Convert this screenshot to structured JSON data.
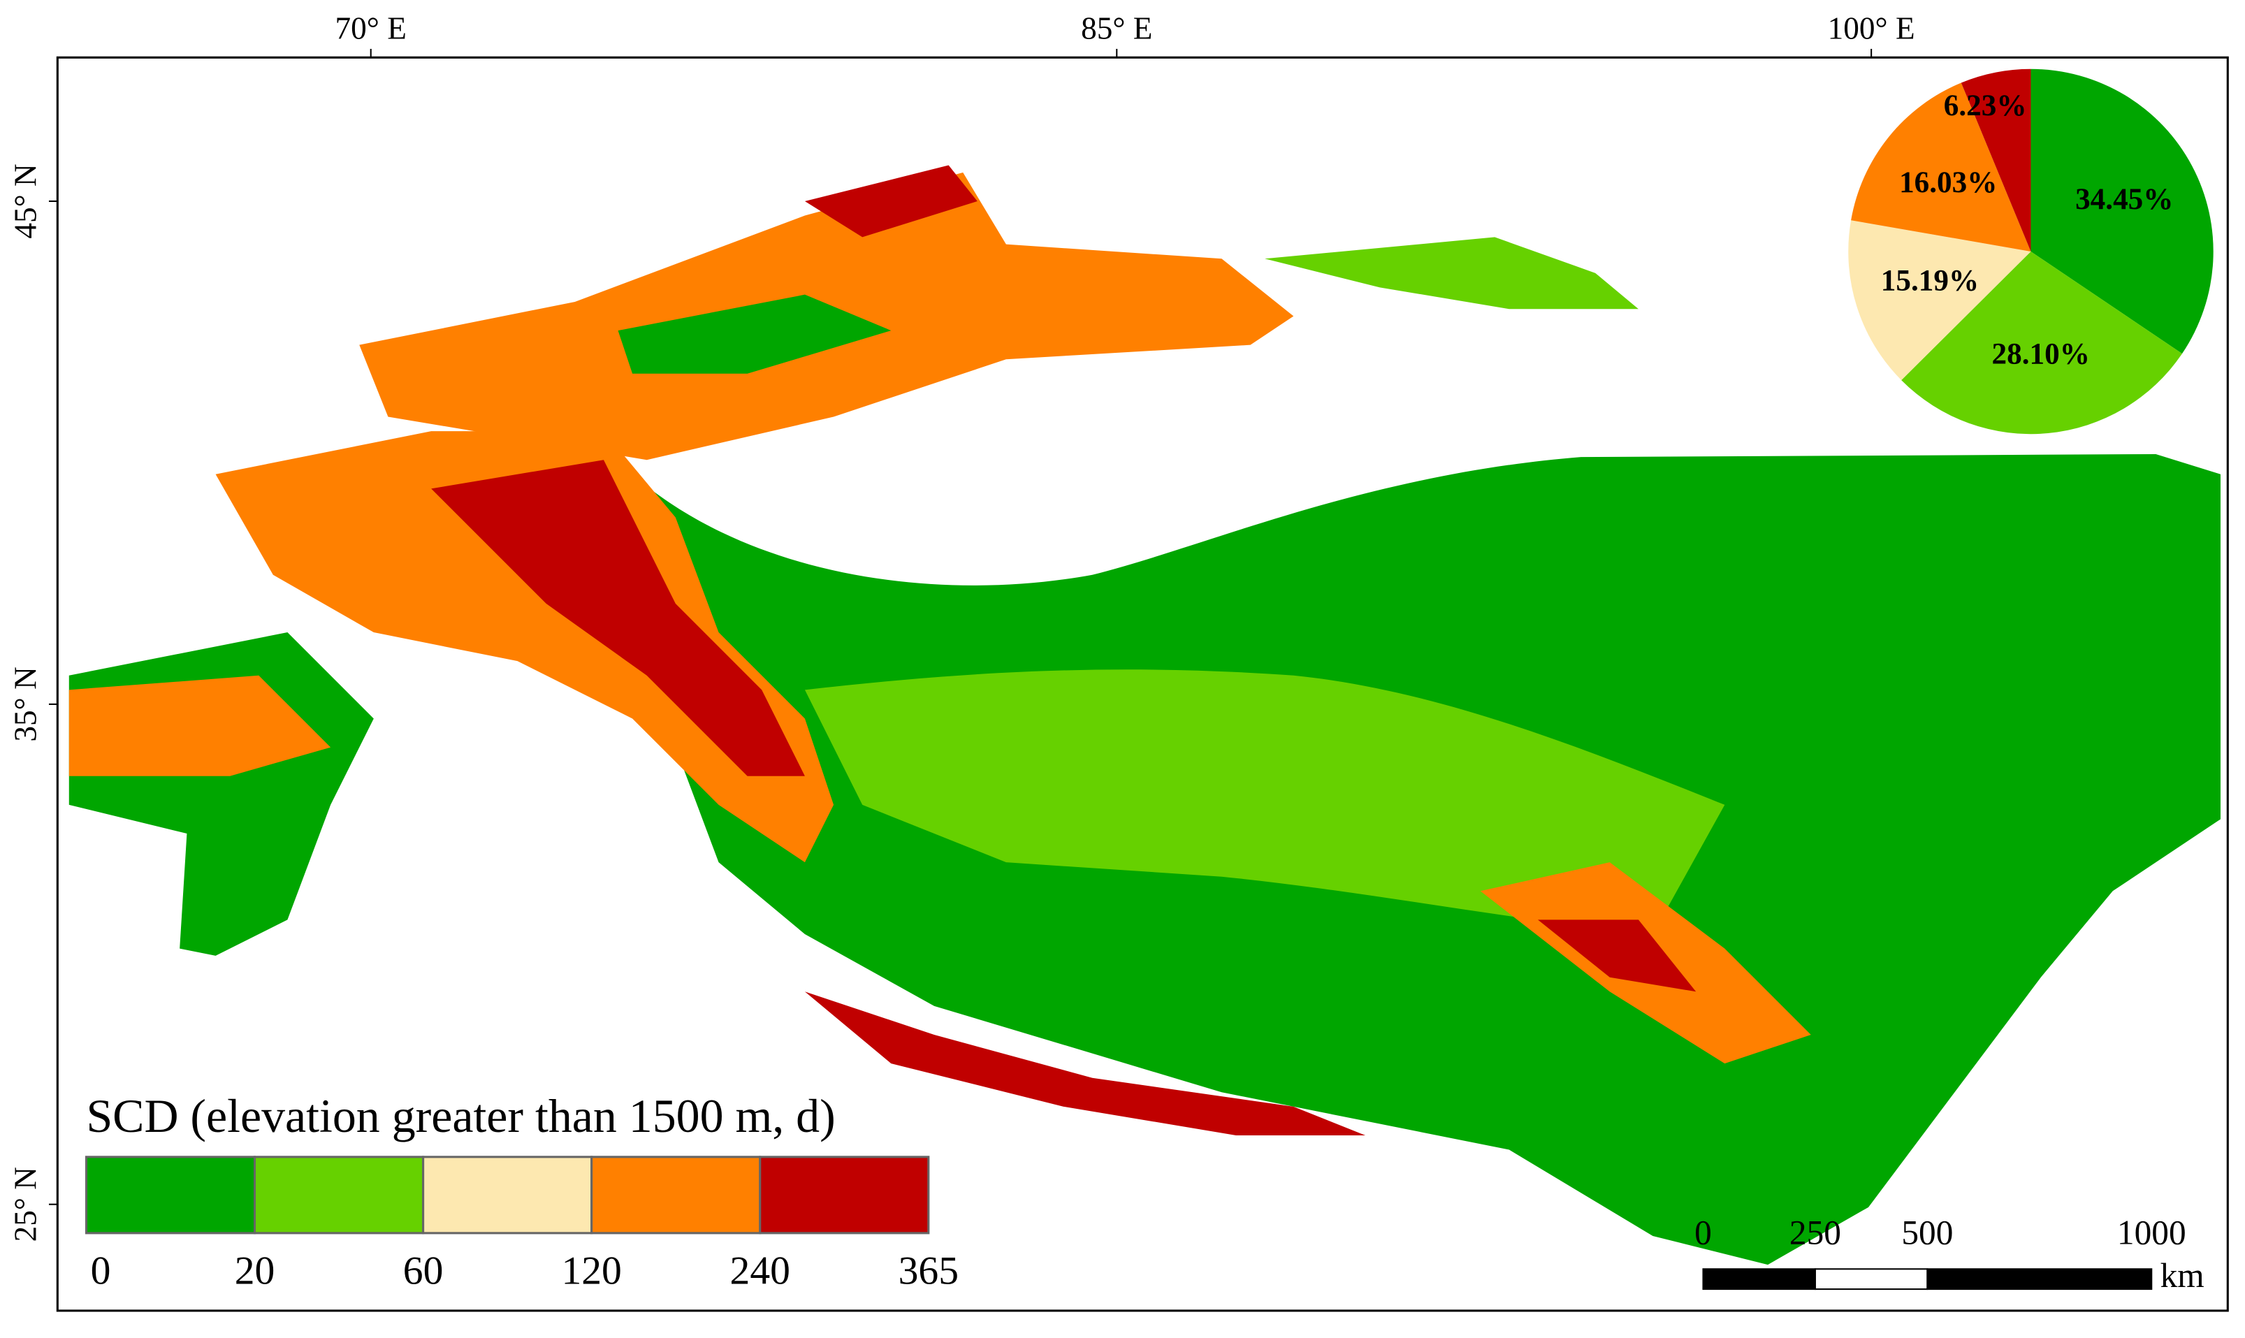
{
  "map": {
    "lon_labels": [
      "70° E",
      "85° E",
      "100° E"
    ],
    "lat_labels": [
      "45° N",
      "35° N",
      "25° N"
    ],
    "legend": {
      "title": "SCD (elevation greater than 1500 m, d)",
      "breaks": [
        0,
        20,
        60,
        120,
        240,
        365
      ]
    },
    "scale_bar": {
      "ticks": [
        0,
        250,
        500,
        1000
      ],
      "unit": "km"
    }
  },
  "chart_data": {
    "type": "pie",
    "values": [
      34.45,
      28.1,
      15.19,
      16.03,
      6.23
    ],
    "value_labels": [
      "34.45%",
      "28.10%",
      "15.19%",
      "16.03%",
      "6.23%"
    ],
    "colors": [
      "#00a600",
      "#66d100",
      "#fde8b0",
      "#ff8000",
      "#c00000"
    ]
  }
}
